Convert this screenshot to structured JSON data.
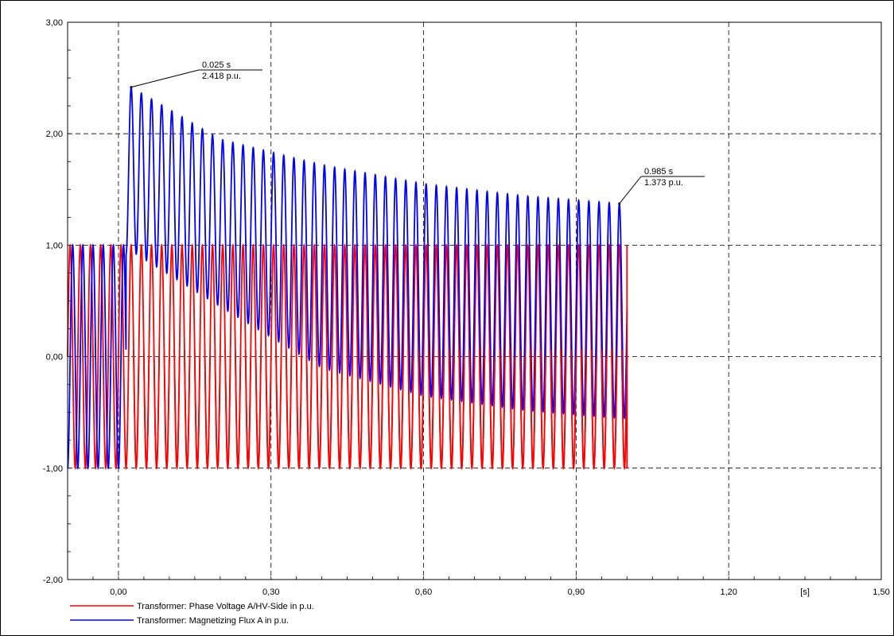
{
  "chart_data": {
    "type": "line",
    "xlabel": "[s]",
    "ylabel": "",
    "xlim": [
      -0.1,
      1.5
    ],
    "ylim": [
      -2.0,
      3.0
    ],
    "x_ticks": [
      "0,00",
      "0,30",
      "0,60",
      "0,90",
      "1,20",
      "1,50"
    ],
    "y_ticks": [
      "3,00",
      "2,00",
      "1,00",
      "0,00",
      "-1,00",
      "-2,00"
    ],
    "grid": true,
    "legend_position": "bottom-left",
    "series": [
      {
        "name": "Transformer: Phase Voltage A/HV-Side in p.u.",
        "color": "#ff0000",
        "frequency_hz": 50,
        "t_start": -0.1,
        "t_end": 1.0,
        "amplitude": 1.0,
        "envelope_note": "pure sine of amplitude 1.0 until ~0.02 s, then visually overlaid"
      },
      {
        "name": "Transformer: Magnetizing Flux A in p.u.",
        "color": "#0000ff",
        "frequency_hz": 50,
        "t_start": -0.1,
        "t_end": 1.0,
        "amplitude": 1.0,
        "envelope_note": "steady-state ±1.0 before 0.0 s; after 0.02 s offset decays",
        "peaks": [
          {
            "t": 0.025,
            "v": 2.418
          },
          {
            "t": 0.2,
            "v": 1.95
          },
          {
            "t": 0.4,
            "v": 1.72
          },
          {
            "t": 0.6,
            "v": 1.55
          },
          {
            "t": 0.8,
            "v": 1.44
          },
          {
            "t": 0.985,
            "v": 1.373
          }
        ],
        "troughs": [
          {
            "t": 0.035,
            "v": 0.92
          },
          {
            "t": 0.2,
            "v": 0.45
          },
          {
            "t": 0.4,
            "v": -0.1
          },
          {
            "t": 0.6,
            "v": -0.35
          },
          {
            "t": 0.8,
            "v": -0.48
          },
          {
            "t": 0.985,
            "v": -0.55
          }
        ]
      }
    ],
    "annotations": [
      {
        "t_label": "0.025 s",
        "v_label": "2.418 p.u.",
        "t": 0.025,
        "v": 2.418
      },
      {
        "t_label": "0.985 s",
        "v_label": "1.373 p.u.",
        "t": 0.985,
        "v": 1.373
      }
    ]
  }
}
